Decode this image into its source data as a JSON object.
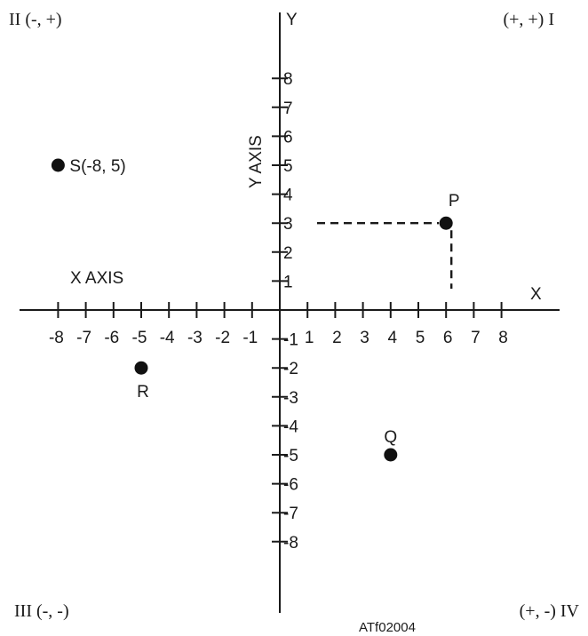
{
  "quadrants": {
    "q1": "(+, +) I",
    "q2": "II (-, +)",
    "q3": "III (-, -)",
    "q4": "(+, -) IV"
  },
  "axes": {
    "x_letter": "X",
    "y_letter": "Y",
    "x_axis_label": "X AXIS",
    "y_axis_label": "Y AXIS"
  },
  "figure_id": "ATf02004",
  "chart_data": {
    "type": "scatter",
    "xlim": [
      -8,
      8
    ],
    "ylim": [
      -8,
      8
    ],
    "x_tick_labels": [
      "-8",
      "-7",
      "-6",
      "-5",
      "-4",
      "-3",
      "-2",
      "-1",
      "1",
      "2",
      "3",
      "4",
      "5",
      "6",
      "7",
      "8"
    ],
    "y_tick_labels": [
      "8",
      "7",
      "6",
      "5",
      "4",
      "3",
      "2",
      "1",
      "-1",
      "-2",
      "-3",
      "-4",
      "-5",
      "-6",
      "-7",
      "-8"
    ],
    "points": [
      {
        "label": "P",
        "x": 6,
        "y": 3,
        "guides": true
      },
      {
        "label": "Q",
        "x": 4,
        "y": -5
      },
      {
        "label": "R",
        "x": -5,
        "y": -2
      },
      {
        "label": "S(-8, 5)",
        "x": -8,
        "y": 5
      }
    ]
  }
}
